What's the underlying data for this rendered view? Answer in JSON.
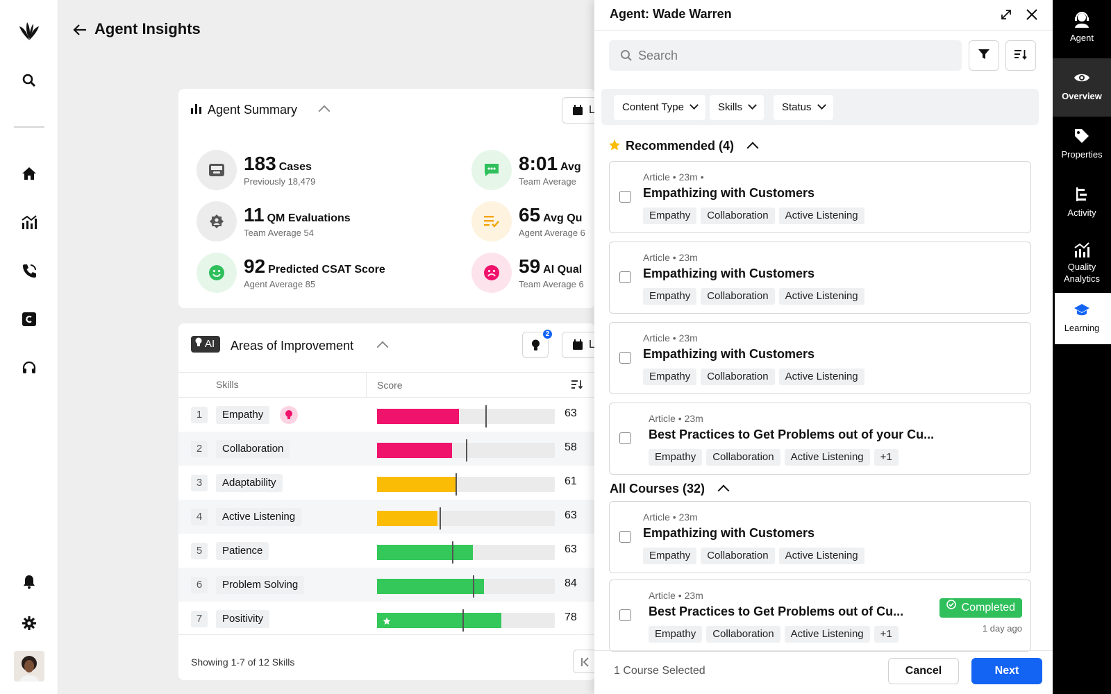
{
  "page": {
    "title": "Agent Insights"
  },
  "summary": {
    "title": "Agent Summary",
    "date_label": "L",
    "stats": [
      {
        "value": "183",
        "label": "Cases",
        "sub": "Previously 18,479",
        "icon": "inbox-icon"
      },
      {
        "value": "8:01",
        "label": "Avg",
        "sub": "Team Average",
        "icon": "chat-icon"
      },
      {
        "value": "11",
        "label": "QM Evaluations",
        "sub": "Team Average 54",
        "icon": "evaluation-icon"
      },
      {
        "value": "65",
        "label": "Avg Qu",
        "sub": "Agent Average 6",
        "icon": "list-check-icon"
      },
      {
        "value": "92",
        "label": "Predicted CSAT Score",
        "sub": "Agent Average 85",
        "icon": "smile-icon"
      },
      {
        "value": "59",
        "label": "AI Qual",
        "sub": "Team Average 6",
        "icon": "sad-icon"
      }
    ]
  },
  "aoi": {
    "ai_badge": "AI",
    "title": "Areas of Improvement",
    "notif_count": "2",
    "date_label": "L",
    "col_skills": "Skills",
    "col_score": "Score",
    "footer": "Showing 1-7 of 12 Skills",
    "rows": [
      {
        "rank": "1",
        "skill": "Empathy",
        "score": "63",
        "fill": 0.46,
        "marker": 0.61,
        "color": "#f0136c",
        "hint": true
      },
      {
        "rank": "2",
        "skill": "Collaboration",
        "score": "58",
        "fill": 0.42,
        "marker": 0.5,
        "color": "#f0136c"
      },
      {
        "rank": "3",
        "skill": "Adaptability",
        "score": "61",
        "fill": 0.44,
        "marker": 0.44,
        "color": "#fbbc05"
      },
      {
        "rank": "4",
        "skill": "Active Listening",
        "score": "63",
        "fill": 0.34,
        "marker": 0.35,
        "color": "#fbbc05"
      },
      {
        "rank": "5",
        "skill": "Patience",
        "score": "63",
        "fill": 0.54,
        "marker": 0.42,
        "color": "#34c759"
      },
      {
        "rank": "6",
        "skill": "Problem Solving",
        "score": "84",
        "fill": 0.6,
        "marker": 0.54,
        "color": "#34c759"
      },
      {
        "rank": "7",
        "skill": "Positivity",
        "score": "78",
        "fill": 0.7,
        "marker": 0.48,
        "color": "#34c759",
        "star": true
      }
    ]
  },
  "panel": {
    "title": "Agent: Wade Warren",
    "search_placeholder": "Search",
    "filters": [
      "Content Type",
      "Skills",
      "Status"
    ],
    "recommended_title": "Recommended (4)",
    "all_title": "All Courses (32)",
    "recommended": [
      {
        "meta": "Article • 23m •",
        "title": "Empathizing with Customers",
        "tags": [
          "Empathy",
          "Collaboration",
          "Active Listening"
        ]
      },
      {
        "meta": "Article • 23m",
        "title": "Empathizing with Customers",
        "tags": [
          "Empathy",
          "Collaboration",
          "Active Listening"
        ]
      },
      {
        "meta": "Article • 23m",
        "title": "Empathizing with Customers",
        "tags": [
          "Empathy",
          "Collaboration",
          "Active Listening"
        ]
      },
      {
        "meta": "Article • 23m",
        "title": "Best Practices to Get Problems out of your Cu...",
        "tags": [
          "Empathy",
          "Collaboration",
          "Active Listening",
          "+1"
        ]
      }
    ],
    "all": [
      {
        "meta": "Article • 23m",
        "title": "Empathizing with Customers",
        "tags": [
          "Empathy",
          "Collaboration",
          "Active Listening"
        ]
      },
      {
        "meta": "Article • 23m",
        "title": "Best Practices to Get Problems out of Cu...",
        "tags": [
          "Empathy",
          "Collaboration",
          "Active Listening",
          "+1"
        ],
        "status": "Completed",
        "when": "1 day ago"
      }
    ],
    "selected": "1 Course Selected",
    "cancel": "Cancel",
    "next": "Next"
  },
  "rail": {
    "items": [
      {
        "label": "Agent",
        "icon": "agent-icon"
      },
      {
        "label": "Overview",
        "icon": "eye-icon"
      },
      {
        "label": "Properties",
        "icon": "tag-icon"
      },
      {
        "label": "Activity",
        "icon": "activity-icon"
      },
      {
        "label": "Quality Analytics",
        "icon": "analytics-icon"
      },
      {
        "label": "Learning",
        "icon": "learning-icon"
      }
    ]
  }
}
